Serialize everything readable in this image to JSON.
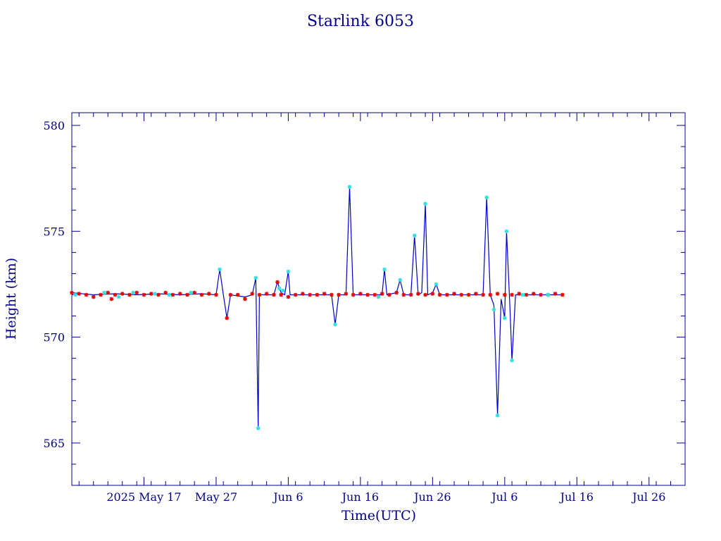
{
  "chart_data": {
    "type": "scatter",
    "title": "Starlink 6053",
    "xlabel": "Time(UTC)",
    "ylabel": "Height (km)",
    "xlim": [
      "2025-05-07",
      "2025-07-31"
    ],
    "ylim": [
      563,
      580.6
    ],
    "yticks": [
      565,
      570,
      575,
      580
    ],
    "xticks": [
      {
        "label": "2025 May 17",
        "date": "2025-05-17"
      },
      {
        "label": "May 27",
        "date": "2025-05-27"
      },
      {
        "label": "Jun  6",
        "date": "2025-06-06"
      },
      {
        "label": "Jun 16",
        "date": "2025-06-16"
      },
      {
        "label": "Jun 26",
        "date": "2025-06-26"
      },
      {
        "label": "Jul  6",
        "date": "2025-07-06"
      },
      {
        "label": "Jul 16",
        "date": "2025-07-16"
      },
      {
        "label": "Jul 26",
        "date": "2025-07-26"
      }
    ],
    "grid": false,
    "colors": {
      "axis": "#00008b",
      "line": "#0000cc",
      "series_a": "#e00000",
      "series_b": "#30e0e0"
    },
    "series": [
      {
        "role": "trace-line",
        "points": [
          [
            "2025-05-07",
            572.1
          ],
          [
            "2025-05-10",
            572.0
          ],
          [
            "2025-05-13",
            572.05
          ],
          [
            "2025-05-16",
            572.0
          ],
          [
            "2025-05-19",
            572.05
          ],
          [
            "2025-05-22",
            572.0
          ],
          [
            "2025-05-25",
            572.05
          ],
          [
            "2025-05-27",
            572.0
          ],
          [
            "2025-05-27T12:00",
            573.2
          ],
          [
            "2025-05-28",
            572.0
          ],
          [
            "2025-05-28T12:00",
            570.9
          ],
          [
            "2025-05-29",
            572.0
          ],
          [
            "2025-05-31",
            571.9
          ],
          [
            "2025-06-01",
            572.0
          ],
          [
            "2025-06-01T12:00",
            572.8
          ],
          [
            "2025-06-01T20:00",
            565.7
          ],
          [
            "2025-06-02",
            572.0
          ],
          [
            "2025-06-04",
            572.0
          ],
          [
            "2025-06-04T12:00",
            572.6
          ],
          [
            "2025-06-05",
            572.1
          ],
          [
            "2025-06-05T12:00",
            572.0
          ],
          [
            "2025-06-06",
            573.1
          ],
          [
            "2025-06-06T06:00",
            572.0
          ],
          [
            "2025-06-12",
            572.0
          ],
          [
            "2025-06-12T12:00",
            570.6
          ],
          [
            "2025-06-13",
            572.0
          ],
          [
            "2025-06-14",
            572.0
          ],
          [
            "2025-06-14T12:00",
            577.1
          ],
          [
            "2025-06-15",
            572.0
          ],
          [
            "2025-06-19",
            572.0
          ],
          [
            "2025-06-19T08:00",
            573.2
          ],
          [
            "2025-06-19T16:00",
            572.0
          ],
          [
            "2025-06-21",
            572.1
          ],
          [
            "2025-06-21T12:00",
            572.7
          ],
          [
            "2025-06-22",
            572.0
          ],
          [
            "2025-06-23",
            572.0
          ],
          [
            "2025-06-23T12:00",
            574.8
          ],
          [
            "2025-06-24",
            572.0
          ],
          [
            "2025-06-24T12:00",
            572.1
          ],
          [
            "2025-06-25",
            576.3
          ],
          [
            "2025-06-25T08:00",
            572.0
          ],
          [
            "2025-06-26",
            572.1
          ],
          [
            "2025-06-26T12:00",
            572.5
          ],
          [
            "2025-06-27",
            572.0
          ],
          [
            "2025-07-03",
            572.0
          ],
          [
            "2025-07-03T12:00",
            576.6
          ],
          [
            "2025-07-04",
            572.0
          ],
          [
            "2025-07-04T12:00",
            571.5
          ],
          [
            "2025-07-05",
            566.3
          ],
          [
            "2025-07-05T12:00",
            571.8
          ],
          [
            "2025-07-06",
            570.9
          ],
          [
            "2025-07-06T06:00",
            575.0
          ],
          [
            "2025-07-06T18:00",
            571.2
          ],
          [
            "2025-07-07",
            568.9
          ],
          [
            "2025-07-07T12:00",
            572.0
          ],
          [
            "2025-07-14",
            572.0
          ]
        ]
      },
      {
        "role": "red-markers",
        "points": [
          [
            "2025-05-07",
            572.1
          ],
          [
            "2025-05-08",
            572.05
          ],
          [
            "2025-05-09",
            572.0
          ],
          [
            "2025-05-10",
            571.9
          ],
          [
            "2025-05-11",
            572.0
          ],
          [
            "2025-05-12",
            572.1
          ],
          [
            "2025-05-12T12:00",
            571.8
          ],
          [
            "2025-05-13",
            572.0
          ],
          [
            "2025-05-14",
            572.05
          ],
          [
            "2025-05-15",
            572.0
          ],
          [
            "2025-05-16",
            572.1
          ],
          [
            "2025-05-17",
            572.0
          ],
          [
            "2025-05-18",
            572.05
          ],
          [
            "2025-05-19",
            572.0
          ],
          [
            "2025-05-20",
            572.1
          ],
          [
            "2025-05-21",
            572.0
          ],
          [
            "2025-05-22",
            572.05
          ],
          [
            "2025-05-23",
            572.0
          ],
          [
            "2025-05-24",
            572.1
          ],
          [
            "2025-05-25",
            572.0
          ],
          [
            "2025-05-26",
            572.05
          ],
          [
            "2025-05-27",
            572.0
          ],
          [
            "2025-05-28T12:00",
            570.9
          ],
          [
            "2025-05-29",
            572.0
          ],
          [
            "2025-05-30",
            572.0
          ],
          [
            "2025-05-31",
            571.8
          ],
          [
            "2025-06-01",
            572.05
          ],
          [
            "2025-06-02",
            572.0
          ],
          [
            "2025-06-03",
            572.05
          ],
          [
            "2025-06-04",
            572.0
          ],
          [
            "2025-06-04T12:00",
            572.6
          ],
          [
            "2025-06-05",
            572.0
          ],
          [
            "2025-06-06",
            571.9
          ],
          [
            "2025-06-07",
            572.0
          ],
          [
            "2025-06-08",
            572.05
          ],
          [
            "2025-06-09",
            572.0
          ],
          [
            "2025-06-10",
            572.0
          ],
          [
            "2025-06-11",
            572.05
          ],
          [
            "2025-06-12",
            572.0
          ],
          [
            "2025-06-13",
            572.0
          ],
          [
            "2025-06-14",
            572.05
          ],
          [
            "2025-06-15",
            572.0
          ],
          [
            "2025-06-16",
            572.05
          ],
          [
            "2025-06-17",
            572.0
          ],
          [
            "2025-06-18",
            572.0
          ],
          [
            "2025-06-19",
            572.05
          ],
          [
            "2025-06-20",
            572.0
          ],
          [
            "2025-06-21",
            572.1
          ],
          [
            "2025-06-22",
            572.0
          ],
          [
            "2025-06-23",
            572.0
          ],
          [
            "2025-06-24",
            572.05
          ],
          [
            "2025-06-25",
            572.0
          ],
          [
            "2025-06-26",
            572.05
          ],
          [
            "2025-06-27",
            572.0
          ],
          [
            "2025-06-28",
            572.0
          ],
          [
            "2025-06-29",
            572.05
          ],
          [
            "2025-06-30",
            572.0
          ],
          [
            "2025-07-01",
            572.0
          ],
          [
            "2025-07-02",
            572.05
          ],
          [
            "2025-07-03",
            572.0
          ],
          [
            "2025-07-04",
            572.0
          ],
          [
            "2025-07-05",
            572.05
          ],
          [
            "2025-07-06",
            572.0
          ],
          [
            "2025-07-07",
            572.0
          ],
          [
            "2025-07-08",
            572.05
          ],
          [
            "2025-07-09",
            572.0
          ],
          [
            "2025-07-10",
            572.05
          ],
          [
            "2025-07-11",
            572.0
          ],
          [
            "2025-07-12",
            572.0
          ],
          [
            "2025-07-13",
            572.05
          ],
          [
            "2025-07-14",
            572.0
          ]
        ]
      },
      {
        "role": "cyan-markers",
        "points": [
          [
            "2025-05-07T12:00",
            572.0
          ],
          [
            "2025-05-11T12:00",
            572.1
          ],
          [
            "2025-05-13T12:00",
            571.9
          ],
          [
            "2025-05-15T12:00",
            572.1
          ],
          [
            "2025-05-18T12:00",
            572.05
          ],
          [
            "2025-05-20T12:00",
            572.0
          ],
          [
            "2025-05-23T12:00",
            572.1
          ],
          [
            "2025-05-27T12:00",
            573.2
          ],
          [
            "2025-06-01T12:00",
            572.8
          ],
          [
            "2025-06-01T20:00",
            565.7
          ],
          [
            "2025-06-04T18:00",
            572.3
          ],
          [
            "2025-06-05T06:00",
            572.2
          ],
          [
            "2025-06-06",
            573.1
          ],
          [
            "2025-06-12T12:00",
            570.6
          ],
          [
            "2025-06-14T12:00",
            577.1
          ],
          [
            "2025-06-18T12:00",
            571.9
          ],
          [
            "2025-06-19T08:00",
            573.2
          ],
          [
            "2025-06-21T12:00",
            572.7
          ],
          [
            "2025-06-23T12:00",
            574.8
          ],
          [
            "2025-06-25",
            576.3
          ],
          [
            "2025-06-26T12:00",
            572.5
          ],
          [
            "2025-07-03T12:00",
            576.6
          ],
          [
            "2025-07-04T12:00",
            571.3
          ],
          [
            "2025-07-05",
            566.3
          ],
          [
            "2025-07-06",
            570.9
          ],
          [
            "2025-07-06T06:00",
            575.0
          ],
          [
            "2025-07-07",
            568.9
          ],
          [
            "2025-07-08T12:00",
            572.0
          ],
          [
            "2025-07-12",
            572.0
          ]
        ]
      }
    ]
  }
}
